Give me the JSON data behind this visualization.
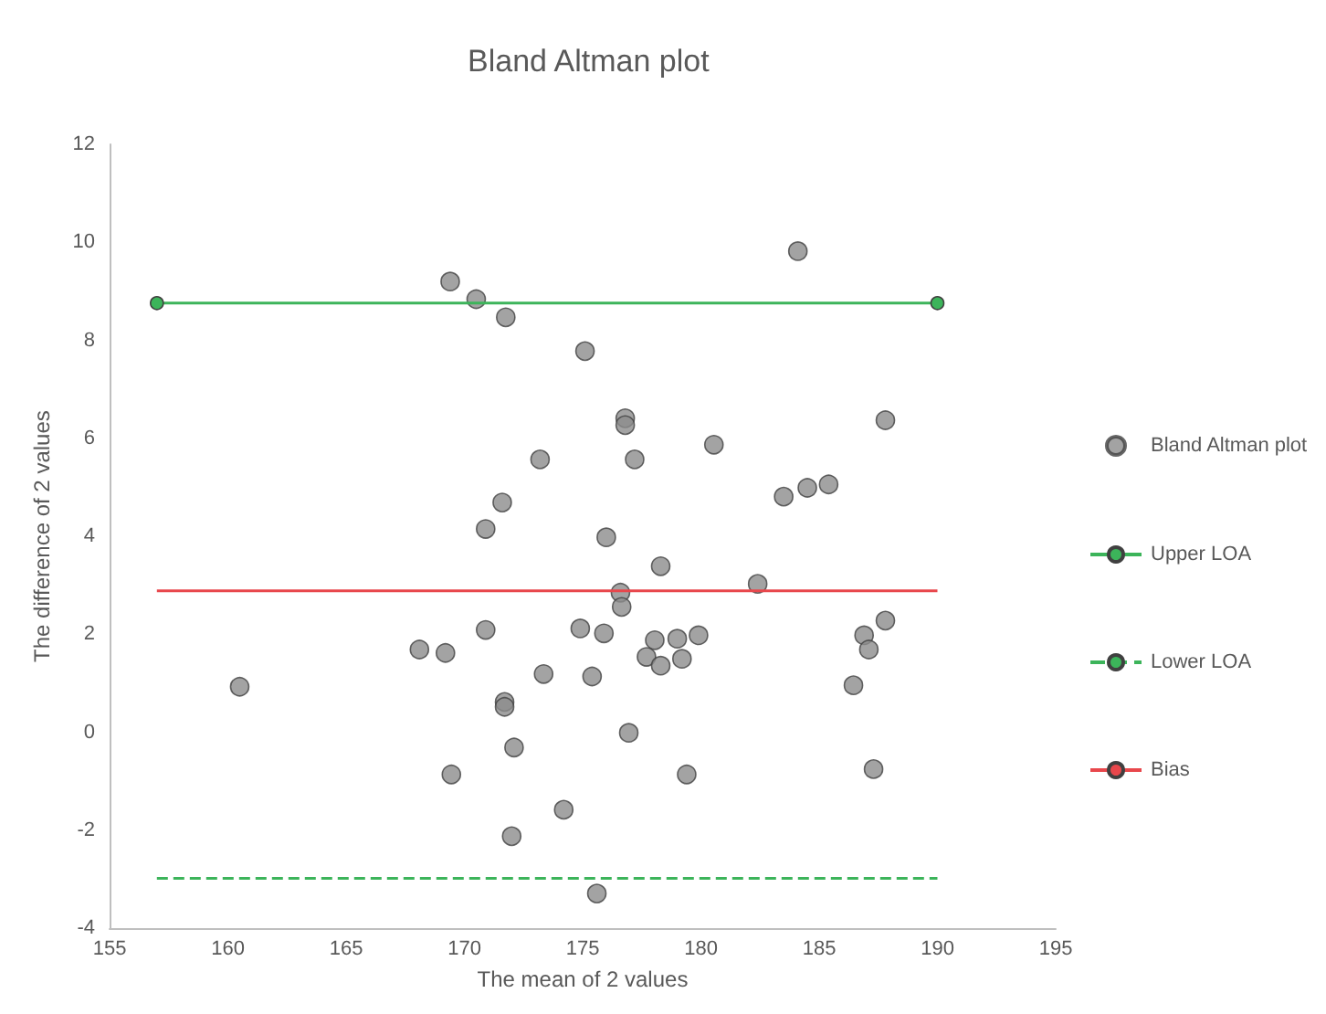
{
  "chart_data": {
    "type": "scatter",
    "title": "Bland Altman plot",
    "xlabel": "The mean of 2 values",
    "ylabel": "The difference of 2 values",
    "xlim": [
      155,
      195
    ],
    "xticks": [
      155,
      160,
      165,
      170,
      175,
      180,
      185,
      190,
      195
    ],
    "ylim": [
      -4,
      12
    ],
    "yticks": [
      -4,
      -2,
      0,
      2,
      4,
      6,
      8,
      10,
      12
    ],
    "grid": false,
    "legend": "right",
    "series": [
      {
        "name": "Bland Altman plot",
        "color": "#8c8c8c",
        "marker": "circle",
        "x": [
          160.5,
          169.4,
          170.5,
          171.75,
          173.2,
          171.6,
          170.9,
          170.9,
          168.1,
          169.2,
          173.35,
          171.7,
          171.7,
          172.1,
          169.45,
          172.0,
          184.1,
          175.1,
          176.8,
          176.8,
          187.8,
          180.55,
          177.2,
          183.5,
          184.5,
          185.4,
          176.0,
          178.3,
          182.4,
          176.6,
          176.65,
          174.9,
          175.9,
          178.05,
          179.0,
          179.9,
          177.7,
          178.3,
          179.2,
          186.9,
          187.1,
          187.8,
          186.45,
          175.4,
          176.95,
          179.4,
          187.3,
          174.2,
          175.6
        ],
        "values": [
          0.93,
          9.2,
          8.84,
          8.47,
          5.57,
          4.69,
          4.15,
          2.09,
          1.69,
          1.62,
          1.19,
          0.62,
          0.52,
          -0.31,
          -0.86,
          -2.12,
          9.82,
          7.78,
          6.41,
          6.27,
          6.37,
          5.87,
          5.57,
          4.81,
          4.99,
          5.06,
          3.98,
          3.39,
          3.03,
          2.85,
          2.56,
          2.12,
          2.02,
          1.88,
          1.91,
          1.98,
          1.54,
          1.36,
          1.5,
          1.98,
          1.69,
          2.28,
          0.96,
          1.14,
          -0.01,
          -0.86,
          -0.75,
          -1.58,
          -3.29
        ]
      },
      {
        "name": "Upper LOA",
        "type": "line",
        "color": "#3cb45a",
        "marker": "circle",
        "line_style": "solid",
        "x": [
          157,
          190
        ],
        "values": [
          8.76,
          8.76
        ]
      },
      {
        "name": "Lower LOA",
        "type": "line",
        "color": "#3cb45a",
        "marker": "none",
        "line_style": "dashed",
        "x": [
          157,
          190
        ],
        "values": [
          -2.98,
          -2.98
        ]
      },
      {
        "name": "Bias",
        "type": "line",
        "color": "#e8474c",
        "marker": "none",
        "line_style": "solid",
        "x": [
          157,
          190
        ],
        "values": [
          2.89,
          2.89
        ]
      }
    ]
  }
}
